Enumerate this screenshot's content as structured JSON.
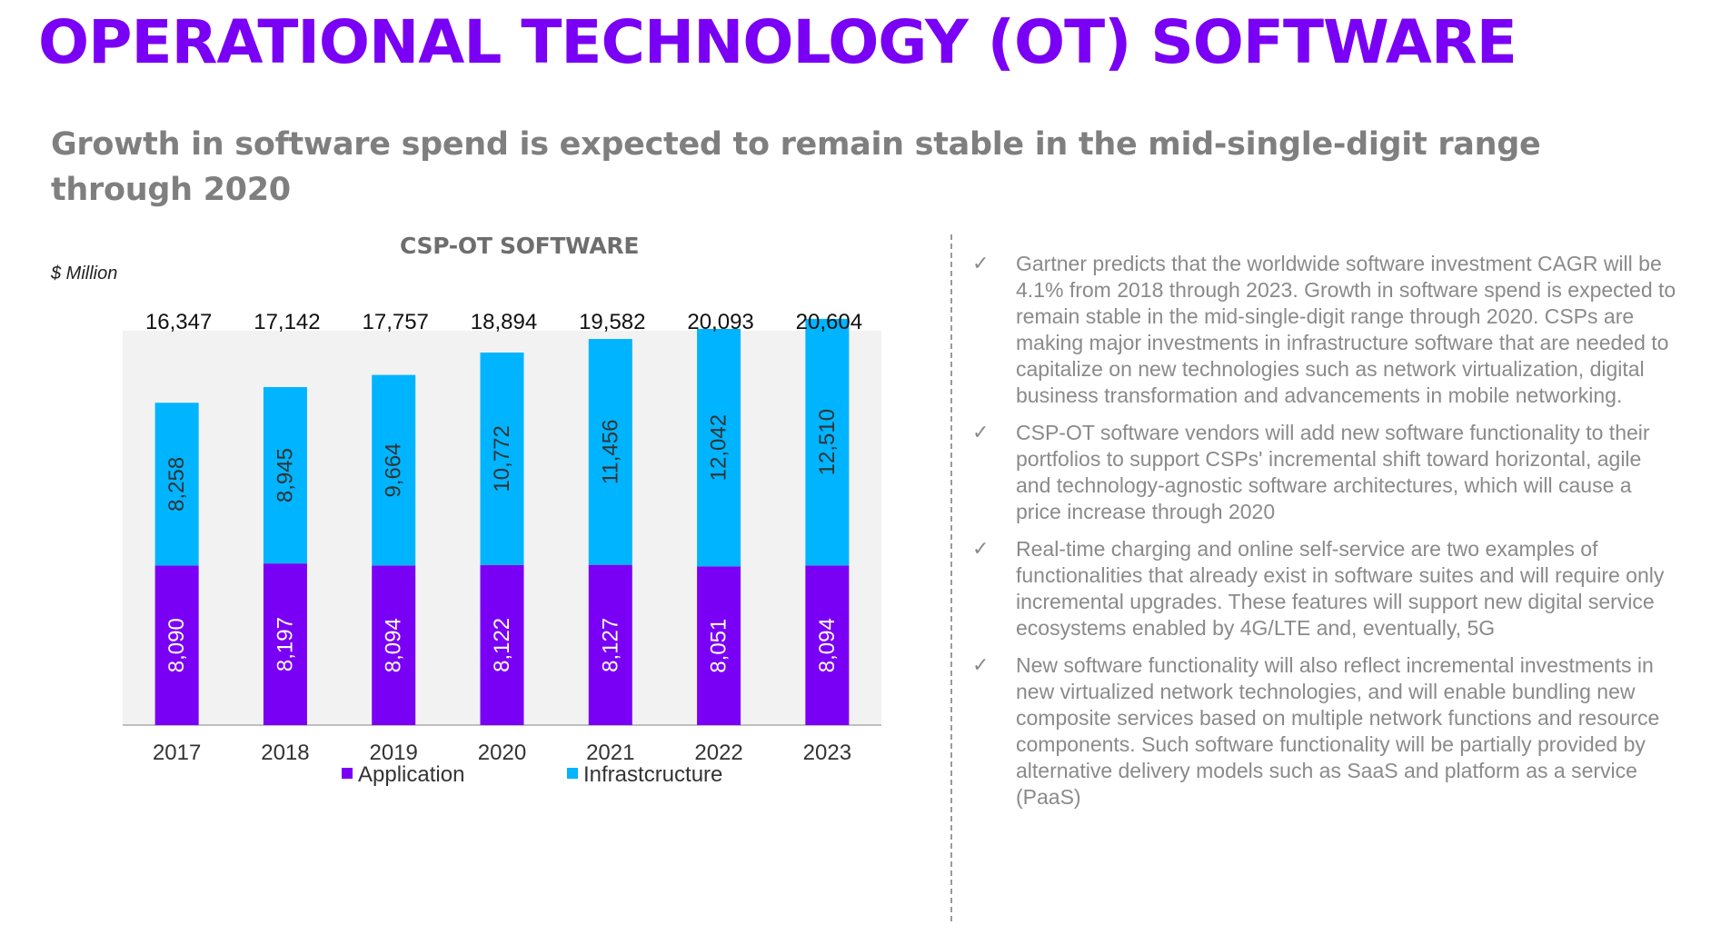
{
  "header": {
    "title": "OPERATIONAL TECHNOLOGY (OT) SOFTWARE",
    "subtitle": "Growth in software spend is expected to remain stable in the mid-single-digit range through 2020"
  },
  "chart_data": {
    "type": "bar",
    "stacked": true,
    "title": "CSP-OT SOFTWARE",
    "unit_label": "$ Million",
    "categories": [
      "2017",
      "2018",
      "2019",
      "2020",
      "2021",
      "2022",
      "2023"
    ],
    "series": [
      {
        "name": "Application",
        "values": [
          8090,
          8197,
          8094,
          8122,
          8127,
          8051,
          8094
        ],
        "labels": [
          "8,090",
          "8,197",
          "8,094",
          "8,122",
          "8,127",
          "8,051",
          "8,094"
        ],
        "color": "#7a00f5"
      },
      {
        "name": "Infrastcructure",
        "values": [
          8258,
          8945,
          9664,
          10772,
          11456,
          12042,
          12510
        ],
        "labels": [
          "8,258",
          "8,945",
          "9,664",
          "10,772",
          "11,456",
          "12,042",
          "12,510"
        ],
        "color": "#00b4ff"
      }
    ],
    "totals": [
      "16,347",
      "17,142",
      "17,757",
      "18,894",
      "19,582",
      "20,093",
      "20,604"
    ],
    "ylim": [
      0,
      20000
    ],
    "grid": false,
    "legend_position": "bottom",
    "plot_background": "#f2f2f2"
  },
  "bullets": {
    "icon": "check-icon",
    "items": [
      {
        "check": "✓",
        "text": "Gartner predicts that the worldwide software investment CAGR will be 4.1% from 2018 through 2023. Growth in software spend is expected to remain stable in the mid-single-digit range through 2020. CSPs are making major investments in infrastructure software that are needed to capitalize on new technologies such as network virtualization, digital business transformation and advancements in mobile networking."
      },
      {
        "check": "✓",
        "text": "CSP-OT software vendors will add new software functionality to their portfolios to support CSPs' incremental shift toward horizontal, agile and technology-agnostic software architectures, which will cause a price increase through 2020"
      },
      {
        "check": "✓",
        "text": "Real-time charging and online self-service are two examples of functionalities that already exist in software suites and will require only incremental upgrades. These features will support new digital service ecosystems enabled by 4G/LTE and, eventually, 5G"
      },
      {
        "check": "✓",
        "text": " New software functionality will also reflect incremental investments in new virtualized network technologies, and will enable bundling new composite services based on multiple network functions and resource components. Such software functionality will be partially provided by alternative delivery models such as SaaS and platform as a service (PaaS)"
      }
    ]
  }
}
